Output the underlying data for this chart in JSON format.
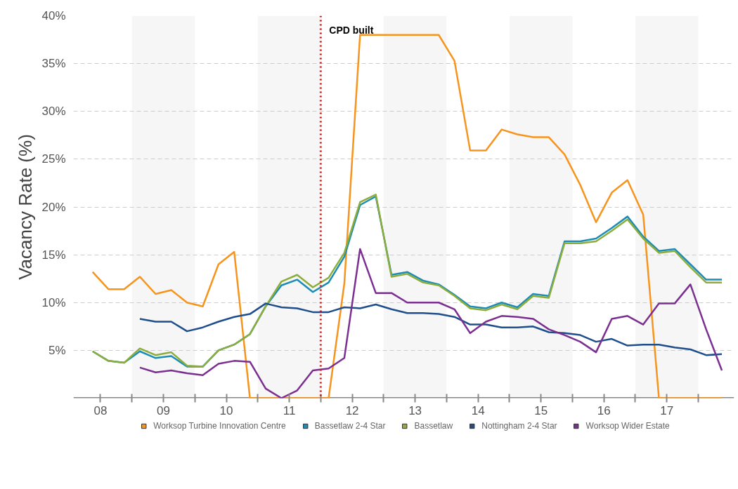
{
  "chart_data": {
    "type": "line",
    "ylabel": "Vacancy Rate (%)",
    "x": [
      7.875,
      8.125,
      8.375,
      8.625,
      8.875,
      9.125,
      9.375,
      9.625,
      9.875,
      10.125,
      10.375,
      10.625,
      10.875,
      11.125,
      11.375,
      11.625,
      11.875,
      12.125,
      12.375,
      12.625,
      12.875,
      13.125,
      13.375,
      13.625,
      13.875,
      14.125,
      14.375,
      14.625,
      14.875,
      15.125,
      15.375,
      15.625,
      15.875,
      16.125,
      16.375,
      16.625,
      16.875,
      17.125,
      17.375,
      17.625,
      17.875
    ],
    "series": [
      {
        "name": "Worksop Turbine Innovation Centre",
        "color": "#f7941d",
        "values": [
          13.2,
          11.4,
          11.4,
          12.7,
          10.9,
          11.3,
          10.0,
          9.6,
          14.0,
          15.3,
          0,
          0,
          0,
          0,
          0,
          0,
          12,
          38,
          38,
          38,
          38,
          38,
          38,
          35.3,
          25.9,
          25.9,
          28.1,
          27.6,
          27.3,
          27.3,
          25.5,
          22.3,
          18.4,
          21.5,
          22.8,
          19.2,
          0,
          0,
          0,
          0,
          0
        ]
      },
      {
        "name": "Bassetlaw 2-4 Star",
        "color": "#1b8cb5",
        "values": [
          4.9,
          3.9,
          3.7,
          4.9,
          4.2,
          4.4,
          3.3,
          3.3,
          5.0,
          5.6,
          6.7,
          9.6,
          11.8,
          12.4,
          11.1,
          12.1,
          14.8,
          20.2,
          21.1,
          12.9,
          13.2,
          12.3,
          11.9,
          10.8,
          9.6,
          9.4,
          10.0,
          9.5,
          10.9,
          10.7,
          16.4,
          16.4,
          16.7,
          17.8,
          19.0,
          16.9,
          15.4,
          15.6,
          14.0,
          12.4,
          12.4
        ]
      },
      {
        "name": "Bassetlaw",
        "color": "#8cad3c",
        "values": [
          4.9,
          3.9,
          3.7,
          5.2,
          4.5,
          4.8,
          3.4,
          3.3,
          5.0,
          5.6,
          6.7,
          9.6,
          12.2,
          12.9,
          11.6,
          12.6,
          15.2,
          20.5,
          21.3,
          12.7,
          13.0,
          12.1,
          11.8,
          10.7,
          9.4,
          9.2,
          9.8,
          9.3,
          10.7,
          10.5,
          16.2,
          16.2,
          16.4,
          17.5,
          18.7,
          16.7,
          15.2,
          15.4,
          13.7,
          12.1,
          12.1
        ]
      },
      {
        "name": "Nottingham 2-4 Star",
        "color": "#1f4e8c",
        "values": [
          null,
          null,
          null,
          8.3,
          8.0,
          8.0,
          7.0,
          7.4,
          8.0,
          8.5,
          8.8,
          9.9,
          9.5,
          9.4,
          9.0,
          9.0,
          9.5,
          9.4,
          9.8,
          9.3,
          8.9,
          8.9,
          8.8,
          8.5,
          7.7,
          7.7,
          7.4,
          7.4,
          7.5,
          6.9,
          6.8,
          6.6,
          5.9,
          6.2,
          5.5,
          5.6,
          5.6,
          5.3,
          5.1,
          4.5,
          4.6
        ]
      },
      {
        "name": "Worksop Wider Estate",
        "color": "#7b2f91",
        "values": [
          null,
          null,
          null,
          3.2,
          2.7,
          2.9,
          2.6,
          2.4,
          3.6,
          3.9,
          3.8,
          1.0,
          0,
          0.8,
          2.9,
          3.1,
          4.2,
          15.6,
          11.0,
          11.0,
          10.0,
          10.0,
          10.0,
          9.3,
          6.8,
          8.0,
          8.6,
          8.5,
          8.3,
          7.2,
          6.6,
          5.9,
          4.8,
          8.3,
          8.6,
          7.7,
          9.9,
          9.9,
          11.9,
          7.2,
          2.9
        ]
      }
    ],
    "xlim": [
      7.57,
      18.07
    ],
    "xticks": [
      {
        "value": 8,
        "label": "08"
      },
      {
        "value": 8.5,
        "label": null
      },
      {
        "value": 9,
        "label": "09"
      },
      {
        "value": 9.5,
        "label": null
      },
      {
        "value": 10,
        "label": "10"
      },
      {
        "value": 10.5,
        "label": null
      },
      {
        "value": 11,
        "label": "11"
      },
      {
        "value": 11.5,
        "label": null
      },
      {
        "value": 12,
        "label": "12"
      },
      {
        "value": 12.5,
        "label": null
      },
      {
        "value": 13,
        "label": "13"
      },
      {
        "value": 13.5,
        "label": null
      },
      {
        "value": 14,
        "label": "14"
      },
      {
        "value": 14.5,
        "label": null
      },
      {
        "value": 15,
        "label": "15"
      },
      {
        "value": 15.5,
        "label": null
      },
      {
        "value": 16,
        "label": "16"
      },
      {
        "value": 16.5,
        "label": null
      },
      {
        "value": 17,
        "label": "17"
      },
      {
        "value": 17.5,
        "label": null
      }
    ],
    "ylim": [
      0,
      40
    ],
    "yticks": [
      {
        "value": 5,
        "label": "5%"
      },
      {
        "value": 10,
        "label": "10%"
      },
      {
        "value": 15,
        "label": "15%"
      },
      {
        "value": 20,
        "label": "20%"
      },
      {
        "value": 25,
        "label": "25%"
      },
      {
        "value": 30,
        "label": "30%"
      },
      {
        "value": 35,
        "label": "35%"
      },
      {
        "value": 40,
        "label": "40%"
      }
    ],
    "grid": "y",
    "legend": "bottom",
    "marker": "none",
    "line_style": "solid",
    "ref_lines": [
      {
        "axis": "x",
        "value": 11.5,
        "label": "CPD built",
        "color": "#ff0000",
        "line_style": "dotted"
      }
    ],
    "bands": [
      {
        "axis": "x",
        "from": 8.5,
        "to": 9.5,
        "color": "#f6f6f6"
      },
      {
        "axis": "x",
        "from": 10.5,
        "to": 11.5,
        "color": "#f6f6f6"
      },
      {
        "axis": "x",
        "from": 12.5,
        "to": 13.5,
        "color": "#f6f6f6"
      },
      {
        "axis": "x",
        "from": 14.5,
        "to": 15.5,
        "color": "#f6f6f6"
      },
      {
        "axis": "x",
        "from": 16.5,
        "to": 17.5,
        "color": "#f6f6f6"
      }
    ]
  }
}
